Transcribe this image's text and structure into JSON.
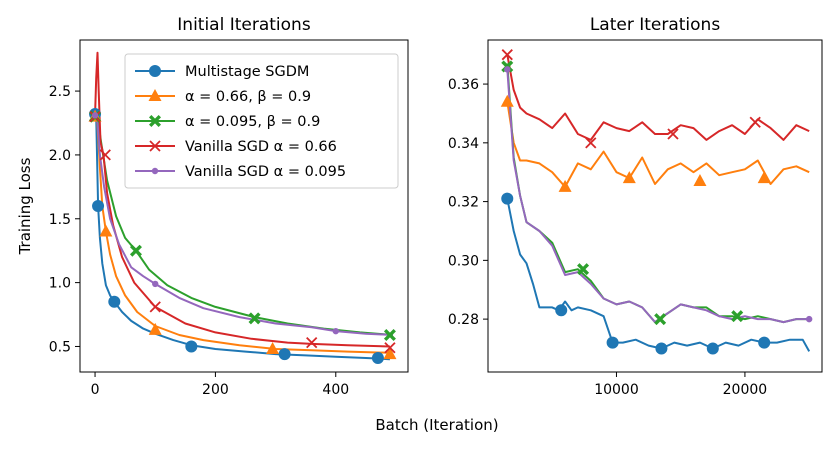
{
  "figure": {
    "shared_xlabel": "Batch (Iteration)"
  },
  "chart_data": [
    {
      "type": "line",
      "title": "Initial Iterations",
      "xlabel": "",
      "ylabel": "Training Loss",
      "xlim": [
        -25,
        520
      ],
      "ylim": [
        0.3,
        2.9
      ],
      "xticks": [
        0,
        200,
        400
      ],
      "yticks": [
        0.5,
        1.0,
        1.5,
        2.0,
        2.5
      ],
      "xtick_labels": [
        "0",
        "200",
        "400"
      ],
      "ytick_labels": [
        "0.5",
        "1.0",
        "1.5",
        "2.0",
        "2.5"
      ],
      "legend": {
        "position": "top-right",
        "entries": [
          "Multistage SGDM",
          "α = 0.66, β = 0.9",
          "α = 0.095, β = 0.9",
          "Vanilla SGD α = 0.66",
          "Vanilla SGD α = 0.095"
        ]
      },
      "series": [
        {
          "name": "Multistage SGDM",
          "color": "#1f77b4",
          "marker": "circle",
          "x": [
            0,
            2,
            5,
            8,
            12,
            18,
            25,
            32,
            45,
            60,
            80,
            100,
            130,
            160,
            200,
            250,
            300,
            350,
            400,
            450,
            490
          ],
          "y": [
            2.32,
            2.3,
            1.6,
            1.35,
            1.15,
            0.98,
            0.9,
            0.85,
            0.77,
            0.7,
            0.64,
            0.6,
            0.55,
            0.51,
            0.48,
            0.46,
            0.44,
            0.43,
            0.42,
            0.41,
            0.4
          ],
          "markers_x": [
            0,
            5,
            32,
            160,
            315,
            470
          ],
          "markers_y": [
            2.32,
            1.6,
            0.85,
            0.5,
            0.44,
            0.41
          ]
        },
        {
          "name": "α = 0.66, β = 0.9",
          "color": "#ff7f0e",
          "marker": "triangle",
          "x": [
            0,
            3,
            8,
            12,
            18,
            25,
            35,
            50,
            70,
            100,
            140,
            180,
            240,
            300,
            360,
            420,
            490
          ],
          "y": [
            2.3,
            2.32,
            1.9,
            1.6,
            1.4,
            1.22,
            1.05,
            0.9,
            0.77,
            0.66,
            0.59,
            0.55,
            0.51,
            0.48,
            0.47,
            0.46,
            0.45
          ],
          "markers_x": [
            0,
            18,
            100,
            295,
            490
          ],
          "markers_y": [
            2.3,
            1.4,
            0.63,
            0.48,
            0.44
          ]
        },
        {
          "name": "α = 0.095, β = 0.9",
          "color": "#2ca02c",
          "marker": "x-filled",
          "x": [
            0,
            3,
            10,
            20,
            35,
            50,
            68,
            90,
            120,
            160,
            200,
            265,
            320,
            380,
            440,
            495
          ],
          "y": [
            2.3,
            2.33,
            2.1,
            1.8,
            1.52,
            1.35,
            1.25,
            1.1,
            0.98,
            0.88,
            0.81,
            0.73,
            0.68,
            0.64,
            0.61,
            0.59
          ],
          "markers_x": [
            0,
            68,
            265,
            490
          ],
          "markers_y": [
            2.3,
            1.25,
            0.72,
            0.59
          ]
        },
        {
          "name": "Vanilla SGD α = 0.66",
          "color": "#d62728",
          "marker": "x",
          "x": [
            0,
            2,
            4,
            6,
            9,
            14,
            20,
            30,
            45,
            65,
            100,
            150,
            200,
            260,
            320,
            360,
            420,
            490
          ],
          "y": [
            2.3,
            2.6,
            2.8,
            2.5,
            2.1,
            2.0,
            1.7,
            1.45,
            1.2,
            1.0,
            0.81,
            0.68,
            0.61,
            0.56,
            0.53,
            0.52,
            0.51,
            0.5
          ],
          "markers_x": [
            0,
            17,
            100,
            360,
            490
          ],
          "markers_y": [
            2.3,
            2.0,
            0.81,
            0.53,
            0.49
          ]
        },
        {
          "name": "Vanilla SGD α = 0.095",
          "color": "#9467bd",
          "marker": "dot",
          "x": [
            0,
            3,
            8,
            15,
            25,
            40,
            60,
            80,
            100,
            140,
            180,
            240,
            300,
            360,
            400,
            450,
            495
          ],
          "y": [
            2.31,
            2.32,
            2.0,
            1.75,
            1.5,
            1.3,
            1.12,
            1.05,
            0.99,
            0.88,
            0.8,
            0.73,
            0.68,
            0.65,
            0.62,
            0.6,
            0.59
          ],
          "markers_x": [
            0,
            100,
            400
          ],
          "markers_y": [
            2.31,
            0.99,
            0.62
          ]
        }
      ]
    },
    {
      "type": "line",
      "title": "Later Iterations",
      "xlabel": "",
      "ylabel": "",
      "xlim": [
        0,
        26000
      ],
      "ylim": [
        0.262,
        0.375
      ],
      "xticks": [
        10000,
        20000
      ],
      "yticks": [
        0.28,
        0.3,
        0.32,
        0.34,
        0.36
      ],
      "xtick_labels": [
        "10000",
        "20000"
      ],
      "ytick_labels": [
        "0.28",
        "0.30",
        "0.32",
        "0.34",
        "0.36"
      ],
      "series": [
        {
          "name": "Multistage SGDM",
          "color": "#1f77b4",
          "marker": "circle",
          "x": [
            1500,
            2000,
            2500,
            3000,
            3500,
            4000,
            5000,
            5500,
            6000,
            6500,
            7000,
            8000,
            9000,
            9700,
            10500,
            11500,
            12500,
            13500,
            14500,
            15500,
            16500,
            17500,
            18500,
            19500,
            20500,
            21500,
            22500,
            23500,
            24500,
            25000
          ],
          "y": [
            0.321,
            0.31,
            0.302,
            0.299,
            0.292,
            0.284,
            0.284,
            0.283,
            0.286,
            0.283,
            0.284,
            0.283,
            0.281,
            0.272,
            0.272,
            0.273,
            0.271,
            0.27,
            0.272,
            0.271,
            0.272,
            0.27,
            0.272,
            0.271,
            0.273,
            0.272,
            0.272,
            0.273,
            0.273,
            0.269
          ],
          "markers_x": [
            1500,
            5700,
            9700,
            13500,
            17500,
            21500
          ],
          "markers_y": [
            0.321,
            0.283,
            0.272,
            0.27,
            0.27,
            0.272
          ]
        },
        {
          "name": "α = 0.66, β = 0.9",
          "color": "#ff7f0e",
          "marker": "triangle",
          "x": [
            1500,
            2000,
            2500,
            3000,
            4000,
            5000,
            6000,
            7000,
            8000,
            9000,
            10000,
            11000,
            12000,
            13000,
            14000,
            15000,
            16000,
            17000,
            18000,
            19000,
            20000,
            21000,
            22000,
            23000,
            24000,
            25000
          ],
          "y": [
            0.354,
            0.34,
            0.334,
            0.334,
            0.333,
            0.33,
            0.325,
            0.333,
            0.331,
            0.337,
            0.33,
            0.328,
            0.335,
            0.326,
            0.331,
            0.333,
            0.33,
            0.333,
            0.329,
            0.33,
            0.331,
            0.334,
            0.326,
            0.331,
            0.332,
            0.33
          ],
          "markers_x": [
            1500,
            6000,
            11000,
            16500,
            21500
          ],
          "markers_y": [
            0.354,
            0.325,
            0.328,
            0.327,
            0.328
          ]
        },
        {
          "name": "α = 0.095, β = 0.9",
          "color": "#2ca02c",
          "marker": "x-filled",
          "x": [
            1500,
            2000,
            2500,
            3000,
            4000,
            5000,
            6000,
            7000,
            8000,
            9000,
            10000,
            11000,
            12000,
            13000,
            14000,
            15000,
            16000,
            17000,
            18000,
            19000,
            20000,
            21000,
            22000,
            23000,
            24000,
            25000
          ],
          "y": [
            0.367,
            0.335,
            0.322,
            0.313,
            0.31,
            0.306,
            0.296,
            0.297,
            0.293,
            0.287,
            0.285,
            0.286,
            0.284,
            0.279,
            0.282,
            0.285,
            0.284,
            0.284,
            0.281,
            0.281,
            0.28,
            0.281,
            0.28,
            0.279,
            0.28,
            0.28
          ],
          "markers_x": [
            1500,
            7400,
            13400,
            19400
          ],
          "markers_y": [
            0.366,
            0.297,
            0.28,
            0.281
          ]
        },
        {
          "name": "Vanilla SGD α = 0.66",
          "color": "#d62728",
          "marker": "x",
          "x": [
            1500,
            2000,
            2500,
            3000,
            4000,
            5000,
            6000,
            7000,
            8000,
            9000,
            10000,
            11000,
            12000,
            13000,
            14000,
            15000,
            16000,
            17000,
            18000,
            19000,
            20000,
            21000,
            22000,
            23000,
            24000,
            25000
          ],
          "y": [
            0.37,
            0.358,
            0.352,
            0.35,
            0.348,
            0.345,
            0.35,
            0.343,
            0.341,
            0.347,
            0.345,
            0.344,
            0.347,
            0.343,
            0.343,
            0.346,
            0.345,
            0.341,
            0.344,
            0.346,
            0.343,
            0.348,
            0.345,
            0.341,
            0.346,
            0.344
          ],
          "markers_x": [
            1500,
            8000,
            14400,
            20800
          ],
          "markers_y": [
            0.37,
            0.34,
            0.343,
            0.347
          ]
        },
        {
          "name": "Vanilla SGD α = 0.095",
          "color": "#9467bd",
          "marker": "dot",
          "x": [
            1500,
            2000,
            2500,
            3000,
            4000,
            5000,
            6000,
            7000,
            8000,
            9000,
            10000,
            11000,
            12000,
            13000,
            14000,
            15000,
            16000,
            17000,
            18000,
            19000,
            20000,
            21000,
            22000,
            23000,
            24000,
            25000
          ],
          "y": [
            0.365,
            0.334,
            0.322,
            0.313,
            0.31,
            0.305,
            0.295,
            0.296,
            0.292,
            0.287,
            0.285,
            0.286,
            0.284,
            0.279,
            0.282,
            0.285,
            0.284,
            0.283,
            0.281,
            0.28,
            0.281,
            0.28,
            0.28,
            0.279,
            0.28,
            0.28
          ],
          "markers_x": [
            1500,
            25000
          ],
          "markers_y": [
            0.365,
            0.28
          ]
        }
      ]
    }
  ]
}
